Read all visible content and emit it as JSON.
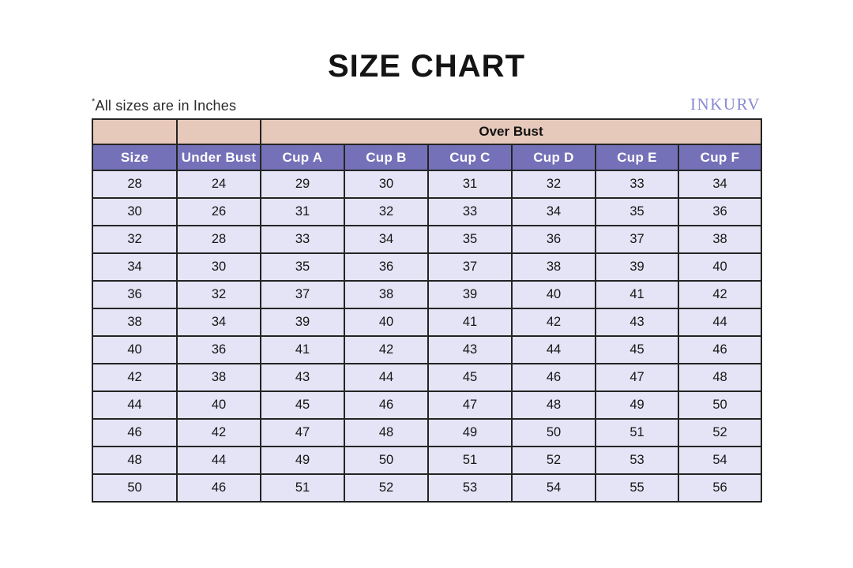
{
  "page": {
    "title": "SIZE CHART",
    "note_mark": "*",
    "note_text": "All sizes are in Inches",
    "brand": "INKURV"
  },
  "colors": {
    "over_bust_header_bg": "#e6c9ba",
    "column_header_bg": "#7571b8",
    "column_header_text": "#ffffff",
    "body_cell_bg": "#e4e4f6",
    "border": "#242424",
    "brand_text": "#8a8ad1",
    "title_text": "#141414"
  },
  "table": {
    "over_bust_label": "Over Bust",
    "columns": [
      "Size",
      "Under Bust",
      "Cup A",
      "Cup B",
      "Cup C",
      "Cup D",
      "Cup E",
      "Cup F"
    ],
    "rows": [
      [
        28,
        24,
        29,
        30,
        31,
        32,
        33,
        34
      ],
      [
        30,
        26,
        31,
        32,
        33,
        34,
        35,
        36
      ],
      [
        32,
        28,
        33,
        34,
        35,
        36,
        37,
        38
      ],
      [
        34,
        30,
        35,
        36,
        37,
        38,
        39,
        40
      ],
      [
        36,
        32,
        37,
        38,
        39,
        40,
        41,
        42
      ],
      [
        38,
        34,
        39,
        40,
        41,
        42,
        43,
        44
      ],
      [
        40,
        36,
        41,
        42,
        43,
        44,
        45,
        46
      ],
      [
        42,
        38,
        43,
        44,
        45,
        46,
        47,
        48
      ],
      [
        44,
        40,
        45,
        46,
        47,
        48,
        49,
        50
      ],
      [
        46,
        42,
        47,
        48,
        49,
        50,
        51,
        52
      ],
      [
        48,
        44,
        49,
        50,
        51,
        52,
        53,
        54
      ],
      [
        50,
        46,
        51,
        52,
        53,
        54,
        55,
        56
      ]
    ]
  },
  "chart_data": {
    "type": "table",
    "title": "SIZE CHART",
    "subtitle": "*All sizes are in Inches",
    "group_header": {
      "label": "Over Bust",
      "spans_columns": [
        "Cup A",
        "Cup B",
        "Cup C",
        "Cup D",
        "Cup E",
        "Cup F"
      ]
    },
    "columns": [
      "Size",
      "Under Bust",
      "Cup A",
      "Cup B",
      "Cup C",
      "Cup D",
      "Cup E",
      "Cup F"
    ],
    "rows": [
      [
        28,
        24,
        29,
        30,
        31,
        32,
        33,
        34
      ],
      [
        30,
        26,
        31,
        32,
        33,
        34,
        35,
        36
      ],
      [
        32,
        28,
        33,
        34,
        35,
        36,
        37,
        38
      ],
      [
        34,
        30,
        35,
        36,
        37,
        38,
        39,
        40
      ],
      [
        36,
        32,
        37,
        38,
        39,
        40,
        41,
        42
      ],
      [
        38,
        34,
        39,
        40,
        41,
        42,
        43,
        44
      ],
      [
        40,
        36,
        41,
        42,
        43,
        44,
        45,
        46
      ],
      [
        42,
        38,
        43,
        44,
        45,
        46,
        47,
        48
      ],
      [
        44,
        40,
        45,
        46,
        47,
        48,
        49,
        50
      ],
      [
        46,
        42,
        47,
        48,
        49,
        50,
        51,
        52
      ],
      [
        48,
        44,
        49,
        50,
        51,
        52,
        53,
        54
      ],
      [
        50,
        46,
        51,
        52,
        53,
        54,
        55,
        56
      ]
    ]
  }
}
